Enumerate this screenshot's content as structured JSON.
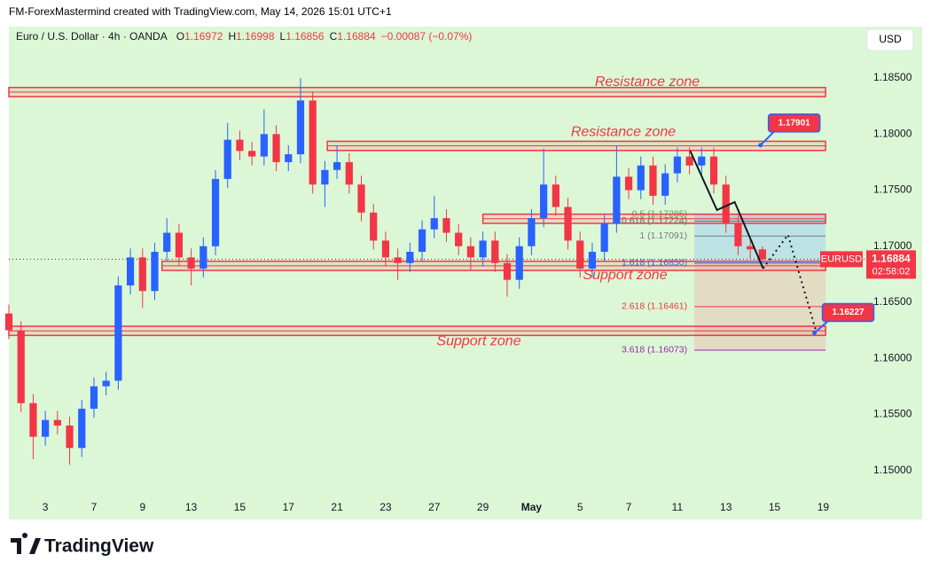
{
  "header": {
    "credit": "FM-ForexMastermind created with TradingView.com, May 14, 2026 15:01 UTC+1",
    "currency_button": "USD",
    "brand": "TradingView"
  },
  "chart_data": {
    "type": "candlestick",
    "title": "Euro / U.S. Dollar · 4h · OANDA",
    "ohlc_labels": [
      "O",
      "H",
      "L",
      "C"
    ],
    "change": "−0.00087 (−0.07%)",
    "countdown": "02:58:02",
    "up_color": "#2962ff",
    "down_color": "#f23645",
    "xlim": [
      -1.5,
      33.7
    ],
    "xticks": [
      {
        "value": 0,
        "label": "3"
      },
      {
        "value": 2,
        "label": "7"
      },
      {
        "value": 4,
        "label": "9"
      },
      {
        "value": 6,
        "label": "13"
      },
      {
        "value": 8,
        "label": "15"
      },
      {
        "value": 10,
        "label": "17"
      },
      {
        "value": 12,
        "label": "21"
      },
      {
        "value": 14,
        "label": "23"
      },
      {
        "value": 16,
        "label": "27"
      },
      {
        "value": 18,
        "label": "29"
      },
      {
        "value": 20,
        "label": "May"
      },
      {
        "value": 22,
        "label": "5"
      },
      {
        "value": 24,
        "label": "7"
      },
      {
        "value": 26,
        "label": "11"
      },
      {
        "value": 28,
        "label": "13"
      },
      {
        "value": 30,
        "label": "15"
      },
      {
        "value": 32,
        "label": "19"
      }
    ],
    "ylim": [
      1.1457,
      1.1888
    ],
    "yticks": [
      {
        "value": 1.185,
        "label": "1.18500"
      },
      {
        "value": 1.18,
        "label": "1.18000"
      },
      {
        "value": 1.175,
        "label": "1.17500"
      },
      {
        "value": 1.17,
        "label": "1.17000"
      },
      {
        "value": 1.165,
        "label": "1.16500"
      },
      {
        "value": 1.16,
        "label": "1.16000"
      },
      {
        "value": 1.155,
        "label": "1.15500"
      },
      {
        "value": 1.15,
        "label": "1.15000"
      }
    ],
    "grid": false,
    "series": [
      {
        "name": "EURUSD",
        "x": [
          -1.5,
          -1,
          -0.5,
          0,
          0.5,
          1,
          1.5,
          2,
          2.5,
          3,
          3.5,
          4,
          4.5,
          5,
          5.5,
          6,
          6.5,
          7,
          7.5,
          8,
          8.5,
          9,
          9.5,
          10,
          10.5,
          11,
          11.5,
          12,
          12.5,
          13,
          13.5,
          14,
          14.5,
          15,
          15.5,
          16,
          16.5,
          17,
          17.5,
          18,
          18.5,
          19,
          19.5,
          20,
          20.5,
          21,
          21.5,
          22,
          22.5,
          23,
          23.5,
          24,
          24.5,
          25,
          25.5,
          26,
          26.5,
          27,
          27.5,
          28,
          28.5,
          29,
          29.5
        ],
        "open": [
          1.164,
          1.1625,
          1.156,
          1.153,
          1.1545,
          1.154,
          1.152,
          1.1555,
          1.1575,
          1.158,
          1.1665,
          1.169,
          1.166,
          1.1695,
          1.1712,
          1.169,
          1.168,
          1.17,
          1.176,
          1.1795,
          1.1785,
          1.178,
          1.18,
          1.1775,
          1.1782,
          1.183,
          1.1755,
          1.1768,
          1.1775,
          1.1755,
          1.173,
          1.1705,
          1.169,
          1.1685,
          1.1695,
          1.1715,
          1.1725,
          1.1712,
          1.17,
          1.169,
          1.1705,
          1.1685,
          1.167,
          1.17,
          1.1725,
          1.1755,
          1.1735,
          1.1705,
          1.168,
          1.1695,
          1.172,
          1.1762,
          1.175,
          1.1772,
          1.1745,
          1.1765,
          1.178,
          1.1772,
          1.178,
          1.1755,
          1.172,
          1.17,
          1.16972
        ],
        "high": [
          1.1648,
          1.1633,
          1.1568,
          1.1553,
          1.1553,
          1.1548,
          1.1563,
          1.1583,
          1.1588,
          1.1673,
          1.1698,
          1.1698,
          1.1703,
          1.1725,
          1.172,
          1.1698,
          1.1708,
          1.1768,
          1.181,
          1.1803,
          1.1793,
          1.1822,
          1.1808,
          1.179,
          1.185,
          1.1838,
          1.1776,
          1.179,
          1.1783,
          1.1763,
          1.1738,
          1.1713,
          1.1698,
          1.1703,
          1.1723,
          1.1745,
          1.1733,
          1.172,
          1.1708,
          1.1713,
          1.1713,
          1.1693,
          1.1708,
          1.1733,
          1.1787,
          1.1763,
          1.1743,
          1.1713,
          1.1703,
          1.1728,
          1.179,
          1.177,
          1.178,
          1.178,
          1.1773,
          1.1788,
          1.1788,
          1.1788,
          1.1788,
          1.1763,
          1.1728,
          1.1708,
          1.16998
        ],
        "low": [
          1.1617,
          1.1552,
          1.151,
          1.1522,
          1.1532,
          1.1505,
          1.1512,
          1.1547,
          1.1567,
          1.1572,
          1.1657,
          1.1645,
          1.1652,
          1.1687,
          1.1682,
          1.1665,
          1.1672,
          1.1692,
          1.1752,
          1.1777,
          1.1772,
          1.1772,
          1.1767,
          1.1767,
          1.1774,
          1.1747,
          1.1735,
          1.176,
          1.1747,
          1.1722,
          1.1697,
          1.1682,
          1.167,
          1.1677,
          1.1687,
          1.1707,
          1.1704,
          1.1692,
          1.1678,
          1.1682,
          1.1677,
          1.1655,
          1.1662,
          1.1692,
          1.1717,
          1.1727,
          1.1697,
          1.1672,
          1.1672,
          1.1687,
          1.1712,
          1.1742,
          1.1742,
          1.1737,
          1.1737,
          1.1757,
          1.1764,
          1.1764,
          1.1747,
          1.1712,
          1.1692,
          1.1689,
          1.16856
        ],
        "close": [
          1.1625,
          1.156,
          1.153,
          1.1545,
          1.154,
          1.152,
          1.1555,
          1.1575,
          1.158,
          1.1665,
          1.169,
          1.166,
          1.1695,
          1.1712,
          1.169,
          1.168,
          1.17,
          1.176,
          1.1795,
          1.1785,
          1.178,
          1.18,
          1.1775,
          1.1782,
          1.183,
          1.1755,
          1.1768,
          1.1775,
          1.1755,
          1.173,
          1.1705,
          1.169,
          1.1685,
          1.1695,
          1.1715,
          1.1725,
          1.1712,
          1.17,
          1.169,
          1.1705,
          1.1685,
          1.167,
          1.17,
          1.1725,
          1.1755,
          1.1735,
          1.1705,
          1.168,
          1.1695,
          1.172,
          1.1762,
          1.175,
          1.1772,
          1.1745,
          1.1765,
          1.178,
          1.1772,
          1.178,
          1.1755,
          1.172,
          1.17,
          1.16972,
          1.16884
        ]
      }
    ],
    "zones": [
      {
        "label": "Resistance zone",
        "low": 1.1835,
        "high": 1.184,
        "from": -1.5,
        "to": 32.1
      },
      {
        "label": "Resistance zone",
        "low": 1.1787,
        "high": 1.1792,
        "from": 11.6,
        "to": 32.1
      },
      {
        "label": "Support zone",
        "low": 1.168,
        "high": 1.1685,
        "from": 4.8,
        "to": 32.1
      },
      {
        "label": "Support zone",
        "low": 1.1622,
        "high": 1.1627,
        "from": -1.5,
        "to": 32.1
      },
      {
        "low": 1.1722,
        "high": 1.1727,
        "from": 18.0,
        "to": 32.1
      }
    ],
    "fib": {
      "from": 26.7,
      "to": 32.1,
      "levels": [
        {
          "label": "0.5 (1.17285)",
          "value": 1.17285,
          "color": "#4caf50"
        },
        {
          "label": "0.618 (1.17224)",
          "value": 1.17224,
          "color": "#089981"
        },
        {
          "label": "1 (1.17091)",
          "value": 1.17091,
          "color": "#787b86"
        },
        {
          "label": "1.618 (1.16850)",
          "value": 1.1685,
          "color": "#2962ff"
        },
        {
          "label": "2.618 (1.16461)",
          "value": 1.16461,
          "color": "#f23645"
        },
        {
          "label": "3.618 (1.16073)",
          "value": 1.16073,
          "color": "#9c27b0"
        }
      ]
    },
    "projection": {
      "x": [
        26.53,
        27.63,
        28.36,
        29.53,
        30.55,
        31.72
      ],
      "y": [
        1.1785,
        1.17323,
        1.17394,
        1.16801,
        1.17102,
        1.16232
      ]
    },
    "callouts": [
      {
        "value": 1.17901,
        "x": 29.42
      },
      {
        "value": 1.16227,
        "x": 31.64
      }
    ]
  }
}
